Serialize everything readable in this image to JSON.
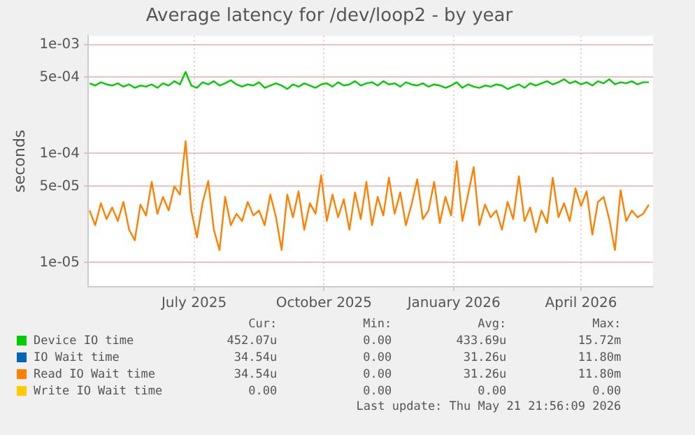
{
  "chart_data": {
    "type": "line",
    "title": "Average latency for /dev/loop2 - by year",
    "ylabel": "seconds",
    "x": [
      "2025-04-18",
      "2025-04-22",
      "2025-04-26",
      "2025-04-30",
      "2025-05-04",
      "2025-05-08",
      "2025-05-12",
      "2025-05-16",
      "2025-05-20",
      "2025-05-24",
      "2025-05-28",
      "2025-06-01",
      "2025-06-05",
      "2025-06-09",
      "2025-06-13",
      "2025-06-17",
      "2025-06-21",
      "2025-06-25",
      "2025-06-29",
      "2025-07-03",
      "2025-07-07",
      "2025-07-11",
      "2025-07-15",
      "2025-07-19",
      "2025-07-23",
      "2025-07-27",
      "2025-07-31",
      "2025-08-04",
      "2025-08-08",
      "2025-08-12",
      "2025-08-16",
      "2025-08-20",
      "2025-08-24",
      "2025-08-28",
      "2025-09-01",
      "2025-09-05",
      "2025-09-09",
      "2025-09-13",
      "2025-09-17",
      "2025-09-21",
      "2025-09-25",
      "2025-09-29",
      "2025-10-03",
      "2025-10-07",
      "2025-10-11",
      "2025-10-15",
      "2025-10-19",
      "2025-10-23",
      "2025-10-27",
      "2025-10-31",
      "2025-11-04",
      "2025-11-08",
      "2025-11-12",
      "2025-11-16",
      "2025-11-20",
      "2025-11-24",
      "2025-11-28",
      "2025-12-02",
      "2025-12-06",
      "2025-12-10",
      "2025-12-14",
      "2025-12-18",
      "2025-12-22",
      "2025-12-26",
      "2025-12-30",
      "2026-01-03",
      "2026-01-07",
      "2026-01-11",
      "2026-01-15",
      "2026-01-19",
      "2026-01-23",
      "2026-01-27",
      "2026-01-31",
      "2026-02-04",
      "2026-02-08",
      "2026-02-12",
      "2026-02-16",
      "2026-02-20",
      "2026-02-24",
      "2026-02-28",
      "2026-03-04",
      "2026-03-08",
      "2026-03-12",
      "2026-03-16",
      "2026-03-20",
      "2026-03-24",
      "2026-03-28",
      "2026-04-01",
      "2026-04-05",
      "2026-04-09",
      "2026-04-13",
      "2026-04-17",
      "2026-04-21",
      "2026-04-25",
      "2026-04-29",
      "2026-05-03",
      "2026-05-07",
      "2026-05-11",
      "2026-05-15",
      "2026-05-19"
    ],
    "series": [
      {
        "name": "Device IO time",
        "color": "#00cc00",
        "values": [
          0.00044,
          0.00042,
          0.00045,
          0.00043,
          0.00042,
          0.00044,
          0.00041,
          0.00043,
          0.0004,
          0.00042,
          0.00041,
          0.00043,
          0.0004,
          0.00044,
          0.00042,
          0.00046,
          0.00043,
          0.00056,
          0.00042,
          0.0004,
          0.00045,
          0.00043,
          0.00046,
          0.00042,
          0.00044,
          0.00047,
          0.00043,
          0.00041,
          0.00043,
          0.00042,
          0.00045,
          0.0004,
          0.00042,
          0.00044,
          0.00042,
          0.00039,
          0.00043,
          0.00041,
          0.00044,
          0.00042,
          0.0004,
          0.00043,
          0.00044,
          0.00041,
          0.00045,
          0.00042,
          0.00043,
          0.00046,
          0.00042,
          0.00044,
          0.00045,
          0.00042,
          0.00046,
          0.00043,
          0.00044,
          0.00041,
          0.00045,
          0.00043,
          0.00042,
          0.00044,
          0.00041,
          0.00043,
          0.00042,
          0.0004,
          0.00042,
          0.00045,
          0.0004,
          0.00043,
          0.00041,
          0.0004,
          0.00042,
          0.00041,
          0.00043,
          0.00042,
          0.00039,
          0.00041,
          0.00043,
          0.0004,
          0.00044,
          0.00042,
          0.00044,
          0.00046,
          0.00043,
          0.00045,
          0.00048,
          0.00044,
          0.00046,
          0.00043,
          0.00045,
          0.00042,
          0.00046,
          0.00044,
          0.00048,
          0.00043,
          0.00045,
          0.00044,
          0.00046,
          0.00043,
          0.00045,
          0.00045
        ]
      },
      {
        "name": "IO Wait time",
        "color": "#0066b3",
        "values": [
          null,
          null,
          null,
          null,
          null,
          null,
          null,
          null,
          null,
          null,
          null,
          null,
          null,
          null,
          null,
          null,
          null,
          null,
          null,
          null,
          null,
          null,
          null,
          null,
          null,
          null,
          null,
          null,
          null,
          null,
          null,
          null,
          null,
          null,
          null,
          null,
          null,
          null,
          null,
          null,
          null,
          null,
          null,
          null,
          null,
          null,
          null,
          null,
          null,
          null,
          null,
          null,
          null,
          null,
          null,
          null,
          null,
          null,
          null,
          null,
          null,
          null,
          null,
          null,
          null,
          null,
          null,
          null,
          null,
          null,
          null,
          null,
          null,
          null,
          null,
          null,
          null,
          null,
          null,
          null,
          null,
          null,
          null,
          null,
          null,
          null,
          null,
          null,
          null,
          null,
          null,
          null,
          null,
          null,
          null,
          null,
          null,
          null,
          null,
          null
        ]
      },
      {
        "name": "Read IO Wait time",
        "color": "#ff8000",
        "values": [
          3e-05,
          2.2e-05,
          3.5e-05,
          2.5e-05,
          3.2e-05,
          2.4e-05,
          3.6e-05,
          2e-05,
          1.6e-05,
          3.4e-05,
          2.7e-05,
          5.5e-05,
          2.8e-05,
          4e-05,
          3e-05,
          5e-05,
          4.2e-05,
          0.00013,
          3e-05,
          1.7e-05,
          3.5e-05,
          5.6e-05,
          2e-05,
          1.3e-05,
          4e-05,
          2.2e-05,
          2.8e-05,
          2.4e-05,
          3.6e-05,
          2.7e-05,
          3e-05,
          2.2e-05,
          4.2e-05,
          2.6e-05,
          1.3e-05,
          4.2e-05,
          2.6e-05,
          4.5e-05,
          2e-05,
          3.5e-05,
          2.8e-05,
          6.3e-05,
          2.4e-05,
          4.2e-05,
          2.6e-05,
          3.8e-05,
          2e-05,
          4.4e-05,
          2.5e-05,
          5.5e-05,
          2.2e-05,
          4e-05,
          2.7e-05,
          6e-05,
          2.8e-05,
          4.4e-05,
          2.2e-05,
          3.4e-05,
          5.8e-05,
          2.5e-05,
          3e-05,
          5.5e-05,
          2.3e-05,
          4e-05,
          2.7e-05,
          8.5e-05,
          2.4e-05,
          4.2e-05,
          7.5e-05,
          2.2e-05,
          3.4e-05,
          2.6e-05,
          3e-05,
          2e-05,
          3.6e-05,
          2.5e-05,
          6.2e-05,
          2.4e-05,
          3.2e-05,
          1.9e-05,
          3e-05,
          2.3e-05,
          6e-05,
          2.6e-05,
          3.5e-05,
          2.4e-05,
          4.8e-05,
          3.3e-05,
          4.5e-05,
          1.8e-05,
          3.6e-05,
          4e-05,
          2.5e-05,
          1.3e-05,
          4.6e-05,
          2.4e-05,
          3e-05,
          2.6e-05,
          2.8e-05,
          3.4e-05
        ]
      },
      {
        "name": "Write IO Wait time",
        "color": "#ffcc00",
        "values": [
          null,
          null,
          null,
          null,
          null,
          null,
          null,
          null,
          null,
          null,
          null,
          null,
          null,
          null,
          null,
          null,
          null,
          null,
          null,
          null,
          null,
          null,
          null,
          null,
          null,
          null,
          null,
          null,
          null,
          null,
          null,
          null,
          null,
          null,
          null,
          null,
          null,
          null,
          null,
          null,
          null,
          null,
          null,
          null,
          null,
          null,
          null,
          null,
          null,
          null,
          null,
          null,
          null,
          null,
          null,
          null,
          null,
          null,
          null,
          null,
          null,
          null,
          null,
          null,
          null,
          null,
          null,
          null,
          null,
          null,
          null,
          null,
          null,
          null,
          null,
          null,
          null,
          null,
          null,
          null,
          null,
          null,
          null,
          null,
          null,
          null,
          null,
          null,
          null,
          null,
          null,
          null,
          null,
          null,
          null,
          null,
          null,
          null,
          null,
          null
        ]
      }
    ],
    "xlim": [
      "2025-04-17",
      "2026-05-22"
    ],
    "xticks": [
      {
        "value": "2025-07-01",
        "label": "July 2025"
      },
      {
        "value": "2025-10-01",
        "label": "October 2025"
      },
      {
        "value": "2026-01-01",
        "label": "January 2026"
      },
      {
        "value": "2026-04-01",
        "label": "April 2026"
      }
    ],
    "ylim": [
      6e-06,
      0.0012
    ],
    "yticks": [
      {
        "value": 1e-05,
        "label": "1e-05"
      },
      {
        "value": 5e-05,
        "label": "5e-05"
      },
      {
        "value": 0.0001,
        "label": "1e-04"
      },
      {
        "value": 0.0005,
        "label": "5e-04"
      },
      {
        "value": 0.001,
        "label": "1e-03"
      }
    ],
    "log": true,
    "grid": true,
    "legend": "bottom",
    "marker": "none",
    "line_style": "solid",
    "annotations": [
      "Cur:",
      "Min:",
      "Avg:",
      "Max:",
      "452.07u",
      "0.00",
      "433.69u",
      "15.72m",
      "34.54u",
      "0.00",
      "31.26u",
      "11.80m",
      "34.54u",
      "0.00",
      "31.26u",
      "11.80m",
      "0.00",
      "0.00",
      "0.00",
      "0.00",
      "Last update: Thu May 21 21:56:09 2026"
    ]
  }
}
